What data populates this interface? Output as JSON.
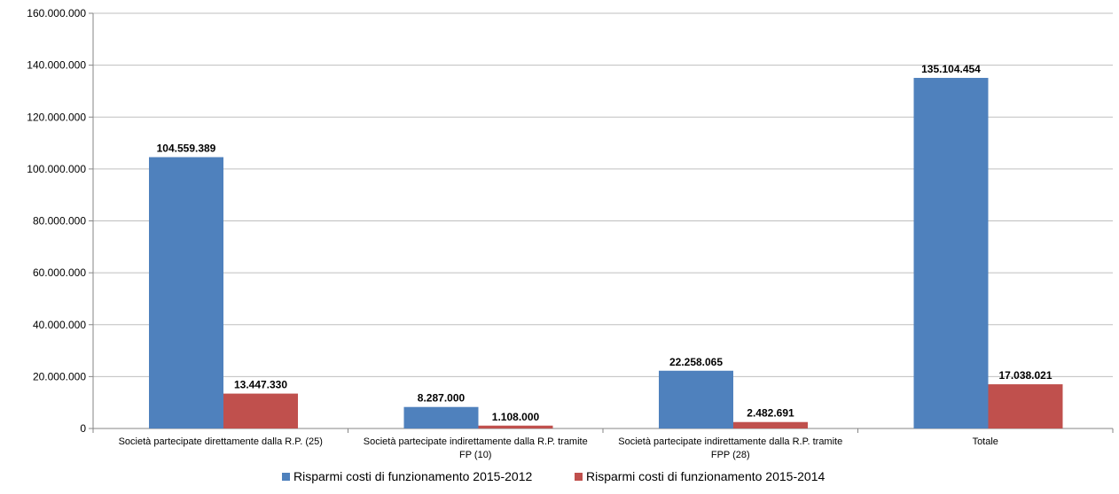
{
  "chart_data": {
    "type": "bar",
    "categories": [
      [
        "Società partecipate direttamente dalla R.P. (25)"
      ],
      [
        "Società partecipate indirettamente dalla R.P. tramite",
        "FP (10)"
      ],
      [
        "Società partecipate indirettamente dalla R.P. tramite",
        "FPP (28)"
      ],
      [
        "Totale"
      ]
    ],
    "series": [
      {
        "name": "Risparmi costi di funzionamento 2015-2012",
        "color": "#4F81BD",
        "values": [
          104559389,
          8287000,
          22258065,
          135104454
        ],
        "labels": [
          "104.559.389",
          "8.287.000",
          "22.258.065",
          "135.104.454"
        ]
      },
      {
        "name": "Risparmi costi di funzionamento 2015-2014",
        "color": "#C0504D",
        "values": [
          13447330,
          1108000,
          2482691,
          17038021
        ],
        "labels": [
          "13.447.330",
          "1.108.000",
          "2.482.691",
          "17.038.021"
        ]
      }
    ],
    "ylim": [
      0,
      160000000
    ],
    "yticks": [
      0,
      20000000,
      40000000,
      60000000,
      80000000,
      100000000,
      120000000,
      140000000,
      160000000
    ],
    "ytick_labels": [
      "0",
      "20.000.000",
      "40.000.000",
      "60.000.000",
      "80.000.000",
      "100.000.000",
      "120.000.000",
      "140.000.000",
      "160.000.000"
    ],
    "grid": true,
    "legend_position": "bottom"
  }
}
